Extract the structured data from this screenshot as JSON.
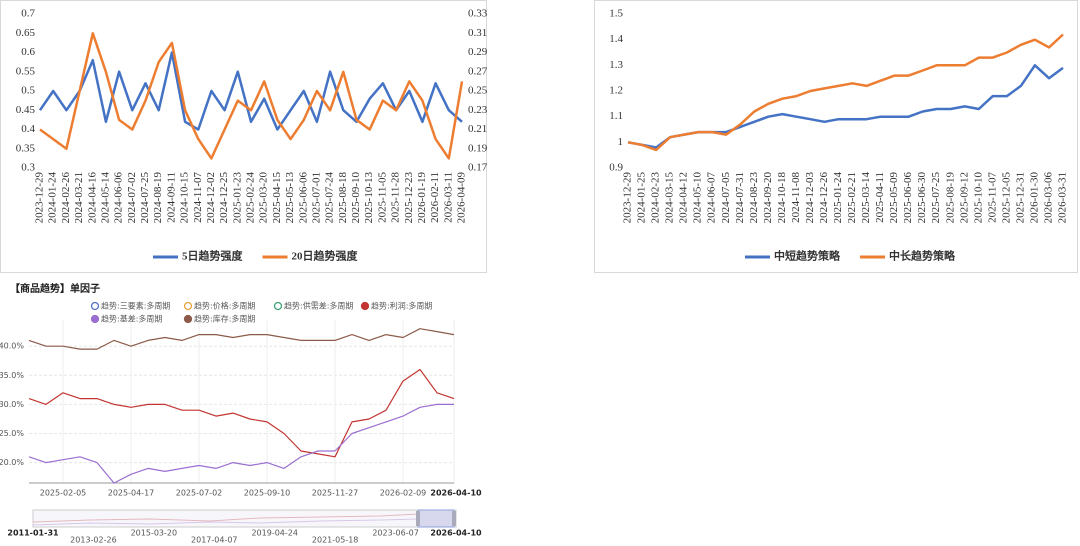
{
  "chart_data": [
    {
      "type": "line",
      "categories": [
        "2023-12-29",
        "2024-01-24",
        "2024-02-26",
        "2024-03-21",
        "2024-04-16",
        "2024-05-14",
        "2024-06-06",
        "2024-07-02",
        "2024-07-25",
        "2024-08-19",
        "2024-09-11",
        "2024-10-15",
        "2024-11-07",
        "2024-12-02",
        "2024-12-25",
        "2025-01-23",
        "2025-02-24",
        "2025-03-20",
        "2025-04-15",
        "2025-05-13",
        "2025-06-06",
        "2025-07-01",
        "2025-07-24",
        "2025-08-18",
        "2025-09-10",
        "2025-10-13",
        "2025-11-05",
        "2025-11-28",
        "2025-12-23",
        "2026-01-19",
        "2026-02-11",
        "2026-03-11",
        "2026-04-09"
      ],
      "series": [
        {
          "name": "5日趋势强度",
          "color": "#4472c4",
          "axis": "y",
          "values": [
            0.45,
            0.5,
            0.45,
            0.5,
            0.58,
            0.42,
            0.55,
            0.45,
            0.52,
            0.45,
            0.6,
            0.42,
            0.4,
            0.5,
            0.45,
            0.55,
            0.42,
            0.48,
            0.4,
            0.45,
            0.5,
            0.42,
            0.55,
            0.45,
            0.42,
            0.48,
            0.52,
            0.45,
            0.5,
            0.42,
            0.52,
            0.45,
            0.42
          ]
        },
        {
          "name": "20日趋势强度",
          "color": "#ed7d31",
          "axis": "y2",
          "values": [
            0.21,
            0.2,
            0.19,
            0.25,
            0.31,
            0.27,
            0.22,
            0.21,
            0.24,
            0.28,
            0.3,
            0.23,
            0.2,
            0.18,
            0.21,
            0.24,
            0.23,
            0.26,
            0.22,
            0.2,
            0.22,
            0.25,
            0.23,
            0.27,
            0.22,
            0.21,
            0.24,
            0.23,
            0.26,
            0.24,
            0.2,
            0.18,
            0.26
          ]
        }
      ],
      "ylim": [
        0.3,
        0.7
      ],
      "yticks": [
        0.3,
        0.35,
        0.4,
        0.45,
        0.5,
        0.55,
        0.6,
        0.65,
        0.7
      ],
      "y2lim": [
        0.17,
        0.33
      ],
      "y2ticks": [
        0.17,
        0.19,
        0.21,
        0.23,
        0.25,
        0.27,
        0.29,
        0.31,
        0.33
      ],
      "legend": "bottom",
      "grid": false
    },
    {
      "type": "line",
      "categories": [
        "2023-12-29",
        "2024-01-25",
        "2024-02-23",
        "2024-03-15",
        "2024-04-12",
        "2024-05-10",
        "2024-06-07",
        "2024-07-05",
        "2024-07-31",
        "2024-08-23",
        "2024-09-20",
        "2024-10-18",
        "2024-11-08",
        "2024-12-03",
        "2024-12-26",
        "2025-01-24",
        "2025-02-21",
        "2025-03-14",
        "2025-04-11",
        "2025-05-09",
        "2025-06-06",
        "2025-06-30",
        "2025-07-25",
        "2025-08-19",
        "2025-09-12",
        "2025-10-10",
        "2025-11-07",
        "2025-12-05",
        "2025-12-31",
        "2026-01-30",
        "2026-03-06",
        "2026-03-31"
      ],
      "series": [
        {
          "name": "中短趋势策略",
          "color": "#4472c4",
          "values": [
            1,
            0.99,
            0.98,
            1.02,
            1.03,
            1.04,
            1.04,
            1.04,
            1.06,
            1.08,
            1.1,
            1.11,
            1.1,
            1.09,
            1.08,
            1.09,
            1.09,
            1.09,
            1.1,
            1.1,
            1.1,
            1.12,
            1.13,
            1.13,
            1.14,
            1.13,
            1.18,
            1.18,
            1.22,
            1.3,
            1.25,
            1.29
          ]
        },
        {
          "name": "中长趋势策略",
          "color": "#ed7d31",
          "values": [
            1,
            0.99,
            0.97,
            1.02,
            1.03,
            1.04,
            1.04,
            1.03,
            1.07,
            1.12,
            1.15,
            1.17,
            1.18,
            1.2,
            1.21,
            1.22,
            1.23,
            1.22,
            1.24,
            1.26,
            1.26,
            1.28,
            1.3,
            1.3,
            1.3,
            1.33,
            1.33,
            1.35,
            1.38,
            1.4,
            1.37,
            1.42
          ]
        }
      ],
      "ylim": [
        0.9,
        1.5
      ],
      "yticks": [
        0.9,
        1,
        1.1,
        1.2,
        1.3,
        1.4,
        1.5
      ],
      "legend": "bottom",
      "grid": false
    },
    {
      "type": "line",
      "title": "【商品趋势】单因子",
      "categories": [
        null,
        null,
        "2025-02-05",
        null,
        null,
        null,
        "2025-04-17",
        null,
        null,
        null,
        "2025-07-02",
        null,
        null,
        null,
        "2025-09-10",
        null,
        null,
        null,
        "2025-11-27",
        null,
        null,
        null,
        "2026-02-09",
        null,
        null,
        "2026-04-10"
      ],
      "series": [
        {
          "name": "趋势:三要素:多周期",
          "color": "#5470c6",
          "hidden": true
        },
        {
          "name": "趋势:价格:多周期",
          "color": "#e8a33b",
          "hidden": true
        },
        {
          "name": "趋势:供需差:多周期",
          "color": "#3ba272",
          "hidden": true
        },
        {
          "name": "趋势:利润:多周期",
          "color": "#c23531",
          "values": [
            31,
            30,
            32,
            31,
            31,
            30,
            29.5,
            30,
            30,
            29,
            29,
            28,
            28.5,
            27.5,
            27,
            25,
            22,
            21.5,
            21,
            27,
            27.5,
            29,
            34,
            36,
            32,
            31
          ]
        },
        {
          "name": "趋势:基差:多周期",
          "color": "#9a6fd0",
          "values": [
            21,
            20,
            20.5,
            21,
            20,
            16.5,
            18,
            19,
            18.5,
            19,
            19.5,
            19,
            20,
            19.5,
            20,
            19,
            21,
            22,
            22,
            25,
            26,
            27,
            28,
            29.5,
            30,
            30
          ]
        },
        {
          "name": "趋势:库存:多周期",
          "color": "#8c5a4a",
          "values": [
            41,
            40,
            40,
            39.5,
            39.5,
            41,
            40,
            41,
            41.5,
            41,
            42,
            42,
            41.5,
            42,
            42,
            41.5,
            41,
            41,
            41,
            42,
            41,
            42,
            41.5,
            43,
            42.5,
            42
          ]
        }
      ],
      "ylim": [
        16.5,
        44.5
      ],
      "yticks": [
        {
          "value": 20,
          "label": "20.0%"
        },
        {
          "value": 25,
          "label": "25.0%"
        },
        {
          "value": 30,
          "label": "30.0%"
        },
        {
          "value": 35,
          "label": "35.0%"
        },
        {
          "value": 40,
          "label": "40.0%"
        }
      ],
      "legend": "top",
      "grid": true,
      "zoom_labels": [
        "2011-01-31",
        "2013-02-26",
        "2015-03-20",
        "2017-04-07",
        "2019-04-24",
        "2021-05-18",
        "2023-06-07",
        "2026-04-10"
      ]
    }
  ]
}
